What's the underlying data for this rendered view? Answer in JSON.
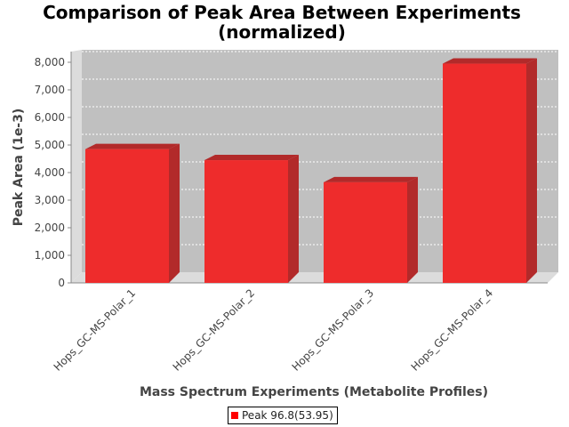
{
  "chart_data": {
    "type": "bar",
    "title": [
      "Comparison of Peak Area Between Experiments",
      "(normalized)"
    ],
    "xlabel": "Mass Spectrum Experiments (Metabolite Profiles)",
    "ylabel": "Peak Area (1e-3)",
    "categories": [
      "Hops_GC-MS-Polar_1",
      "Hops_GC-MS-Polar_2",
      "Hops_GC-MS-Polar_3",
      "Hops_GC-MS-Polar_4"
    ],
    "series": [
      {
        "name": "Peak 96.8(53.95)",
        "values": [
          4850,
          4450,
          3650,
          7950
        ]
      }
    ],
    "ylim": [
      0,
      8000
    ],
    "yticks": [
      0,
      1000,
      2000,
      3000,
      4000,
      5000,
      6000,
      7000,
      8000
    ],
    "ytick_labels": [
      "0",
      "1,000",
      "2,000",
      "3,000",
      "4,000",
      "5,000",
      "6,000",
      "7,000",
      "8,000"
    ],
    "grid": true,
    "style": "3d",
    "legend_position": "bottom",
    "colors": {
      "bar": "#ee2c2c",
      "bar_side": "#b22a2a",
      "bar_top": "#b22a2a",
      "plot_bg": "#c0c0c0",
      "wall": "#dcdcdc"
    }
  },
  "legend": {
    "label": "Peak 96.8(53.95)",
    "color": "#ff0000"
  }
}
